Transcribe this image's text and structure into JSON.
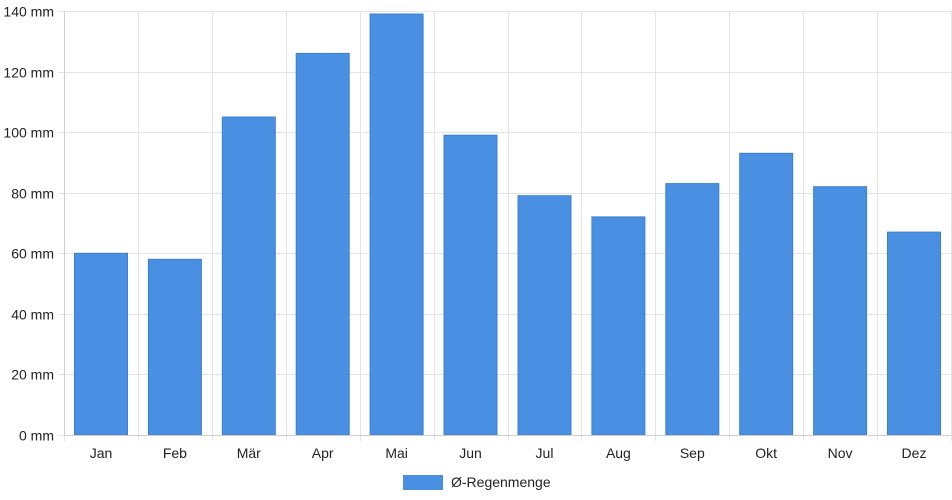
{
  "chart_data": {
    "type": "bar",
    "title": "",
    "xlabel": "",
    "ylabel": "",
    "categories": [
      "Jan",
      "Feb",
      "Mär",
      "Apr",
      "Mai",
      "Jun",
      "Jul",
      "Aug",
      "Sep",
      "Okt",
      "Nov",
      "Dez"
    ],
    "series": [
      {
        "name": "Ø-Regenmenge",
        "values": [
          60,
          58,
          105,
          126,
          139,
          99,
          79,
          72,
          83,
          93,
          82,
          67
        ],
        "color": "#4a90e2"
      }
    ],
    "ylim": [
      0,
      140
    ],
    "yticks": [
      0,
      20,
      40,
      60,
      80,
      100,
      120,
      140
    ],
    "y_unit": "mm",
    "ytick_labels": [
      "0 mm",
      "20 mm",
      "40 mm",
      "60 mm",
      "80 mm",
      "100 mm",
      "120 mm",
      "140 mm"
    ],
    "grid": true,
    "legend": "bottom"
  }
}
